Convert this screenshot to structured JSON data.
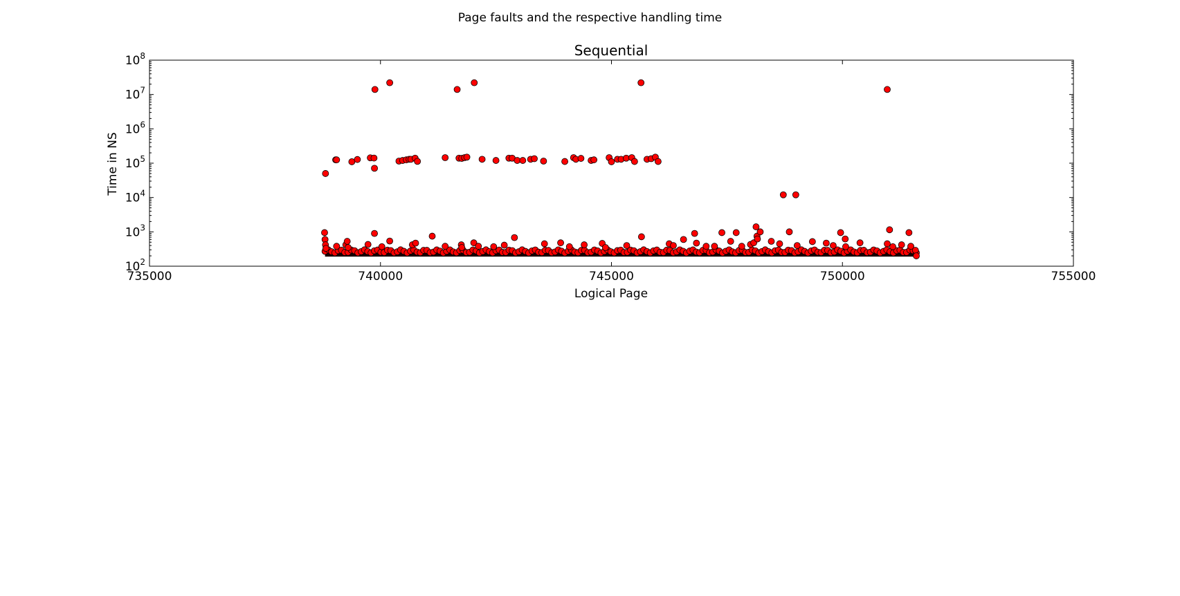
{
  "figure": {
    "suptitle": "Page faults and the respective handling time"
  },
  "chart_data": {
    "type": "scatter",
    "title": "Sequential",
    "xlabel": "Logical Page",
    "ylabel": "Time in NS",
    "xlim": [
      735000,
      755000
    ],
    "ylim": [
      100,
      100000000
    ],
    "yscale": "log",
    "grid": false,
    "legend": "none",
    "xticks": [
      735000,
      740000,
      745000,
      750000,
      755000
    ],
    "xtick_labels": [
      "735000",
      "740000",
      "745000",
      "750000",
      "755000"
    ],
    "yticks": [
      100,
      1000,
      10000,
      100000,
      1000000,
      10000000,
      100000000
    ],
    "ytick_base": "10",
    "ytick_exponents": [
      "2",
      "3",
      "4",
      "5",
      "6",
      "7",
      "8"
    ],
    "dense_band": {
      "x_range": [
        738800,
        751600
      ],
      "y_range": [
        190,
        300
      ],
      "note": "thousands of overlapping faults between ~190 and ~300 ns"
    },
    "series": [
      {
        "marker_color": "#ff0000",
        "edge_color": "#000000",
        "points": [
          [
            738810,
            50000
          ],
          [
            739030,
            125000
          ],
          [
            739050,
            125000
          ],
          [
            739380,
            110000
          ],
          [
            739500,
            128000
          ],
          [
            739780,
            143000
          ],
          [
            739860,
            141000
          ],
          [
            739870,
            71000
          ],
          [
            739880,
            14000000
          ],
          [
            740200,
            22000000
          ],
          [
            740400,
            115000
          ],
          [
            740480,
            120000
          ],
          [
            740560,
            125000
          ],
          [
            740620,
            130000
          ],
          [
            740660,
            130000
          ],
          [
            740750,
            140000
          ],
          [
            740800,
            113000
          ],
          [
            741400,
            145000
          ],
          [
            741660,
            14000000
          ],
          [
            741700,
            140000
          ],
          [
            741760,
            138000
          ],
          [
            741820,
            145000
          ],
          [
            741870,
            150000
          ],
          [
            742030,
            22000000
          ],
          [
            742200,
            130000
          ],
          [
            742500,
            120000
          ],
          [
            742780,
            140000
          ],
          [
            742850,
            140000
          ],
          [
            742960,
            120000
          ],
          [
            743080,
            120000
          ],
          [
            743250,
            130000
          ],
          [
            743330,
            135000
          ],
          [
            743530,
            115000
          ],
          [
            743990,
            112000
          ],
          [
            744180,
            145000
          ],
          [
            744230,
            130000
          ],
          [
            744340,
            138000
          ],
          [
            744560,
            120000
          ],
          [
            744620,
            125000
          ],
          [
            744950,
            145000
          ],
          [
            745000,
            110000
          ],
          [
            745130,
            130000
          ],
          [
            745210,
            130000
          ],
          [
            745320,
            140000
          ],
          [
            745440,
            145000
          ],
          [
            745500,
            112000
          ],
          [
            745640,
            22000000
          ],
          [
            745770,
            130000
          ],
          [
            745860,
            135000
          ],
          [
            745950,
            150000
          ],
          [
            746010,
            112000
          ],
          [
            748720,
            12000
          ],
          [
            748990,
            12000
          ],
          [
            750970,
            14000000
          ],
          [
            738790,
            950
          ],
          [
            738800,
            600
          ],
          [
            738810,
            420
          ],
          [
            738820,
            330
          ],
          [
            739050,
            380
          ],
          [
            739250,
            420
          ],
          [
            739280,
            530
          ],
          [
            739300,
            350
          ],
          [
            739730,
            430
          ],
          [
            739870,
            900
          ],
          [
            740030,
            370
          ],
          [
            740200,
            540
          ],
          [
            740690,
            420
          ],
          [
            740760,
            470
          ],
          [
            741120,
            750
          ],
          [
            741400,
            380
          ],
          [
            741750,
            420
          ],
          [
            741760,
            350
          ],
          [
            742020,
            480
          ],
          [
            742120,
            380
          ],
          [
            742450,
            370
          ],
          [
            742680,
            410
          ],
          [
            742900,
            680
          ],
          [
            743550,
            450
          ],
          [
            743900,
            480
          ],
          [
            744090,
            370
          ],
          [
            744410,
            420
          ],
          [
            744800,
            460
          ],
          [
            744870,
            350
          ],
          [
            745330,
            400
          ],
          [
            745650,
            720
          ],
          [
            746250,
            450
          ],
          [
            746340,
            400
          ],
          [
            746560,
            600
          ],
          [
            746800,
            900
          ],
          [
            746840,
            470
          ],
          [
            747050,
            380
          ],
          [
            747230,
            380
          ],
          [
            747390,
            950
          ],
          [
            747580,
            530
          ],
          [
            747700,
            950
          ],
          [
            747820,
            380
          ],
          [
            748010,
            430
          ],
          [
            748080,
            480
          ],
          [
            748130,
            1400
          ],
          [
            748150,
            750
          ],
          [
            748160,
            620
          ],
          [
            748220,
            1000
          ],
          [
            748460,
            530
          ],
          [
            748640,
            450
          ],
          [
            748850,
            1000
          ],
          [
            749020,
            400
          ],
          [
            749350,
            520
          ],
          [
            749650,
            470
          ],
          [
            749800,
            400
          ],
          [
            749960,
            950
          ],
          [
            750060,
            620
          ],
          [
            750070,
            370
          ],
          [
            750380,
            480
          ],
          [
            750970,
            450
          ],
          [
            751020,
            1150
          ],
          [
            751090,
            370
          ],
          [
            751280,
            420
          ],
          [
            751440,
            950
          ],
          [
            751480,
            380
          ],
          [
            751580,
            290
          ],
          [
            751600,
            200
          ]
        ]
      }
    ]
  }
}
